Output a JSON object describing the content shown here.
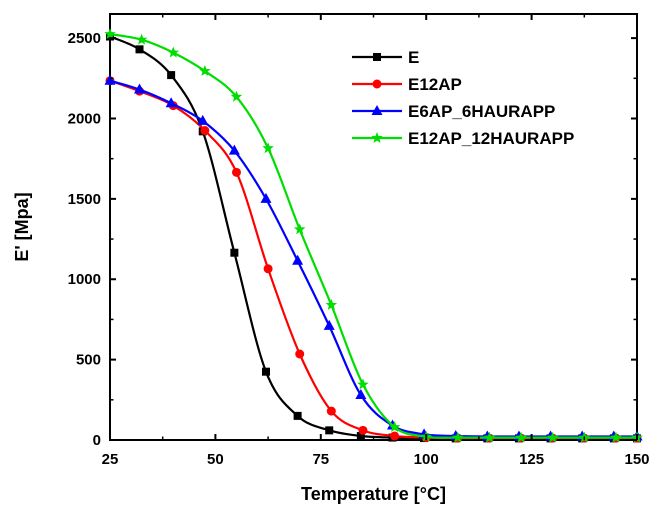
{
  "chart_data": {
    "type": "line",
    "xlabel": "Temperature [°C]",
    "ylabel": "E' [Mpa]",
    "xlim": [
      25,
      150
    ],
    "ylim": [
      0,
      2650
    ],
    "xticks": [
      25,
      50,
      75,
      100,
      125,
      150
    ],
    "yticks": [
      0,
      500,
      1000,
      1500,
      2000,
      2500
    ],
    "grid": false,
    "legend_position": "top-right",
    "series": [
      {
        "name": "E",
        "color": "#000000",
        "marker": "square",
        "x": [
          25,
          32,
          39.5,
          47,
          54.5,
          62,
          69.5,
          77,
          84.5,
          92,
          99.5,
          107,
          114.5,
          122,
          129.5,
          137,
          144.5,
          150
        ],
        "y": [
          2510,
          2430,
          2270,
          1920,
          1165,
          425,
          150,
          60,
          25,
          15,
          12,
          10,
          10,
          10,
          10,
          10,
          10,
          10
        ]
      },
      {
        "name": "E12AP",
        "color": "#ff0000",
        "marker": "circle",
        "x": [
          25,
          32,
          40,
          47.5,
          55,
          62.5,
          70,
          77.5,
          85,
          92.5,
          100,
          107.5,
          115,
          122.5,
          130,
          137.5,
          145,
          150
        ],
        "y": [
          2235,
          2170,
          2080,
          1925,
          1665,
          1065,
          535,
          180,
          60,
          25,
          15,
          12,
          12,
          12,
          12,
          12,
          12,
          12
        ]
      },
      {
        "name": "E6AP_6HAURAPP",
        "color": "#0000ff",
        "marker": "triangle",
        "x": [
          25,
          32,
          39.5,
          47,
          54.5,
          62,
          69.5,
          77,
          84.5,
          92,
          99.5,
          107,
          114.5,
          122,
          129.5,
          137,
          144.5,
          150
        ],
        "y": [
          2235,
          2180,
          2095,
          1985,
          1800,
          1500,
          1115,
          710,
          280,
          90,
          35,
          25,
          22,
          22,
          22,
          22,
          22,
          22
        ]
      },
      {
        "name": "E12AP_12HAURAPP",
        "color": "#00dd00",
        "marker": "star",
        "x": [
          25,
          32.5,
          40,
          47.5,
          55,
          62.5,
          70,
          77.5,
          85,
          92.5,
          100,
          107.5,
          115,
          122.5,
          130,
          137.5,
          145,
          150
        ],
        "y": [
          2525,
          2490,
          2410,
          2295,
          2135,
          1815,
          1310,
          840,
          345,
          80,
          20,
          15,
          15,
          15,
          15,
          15,
          15,
          15
        ]
      }
    ]
  }
}
